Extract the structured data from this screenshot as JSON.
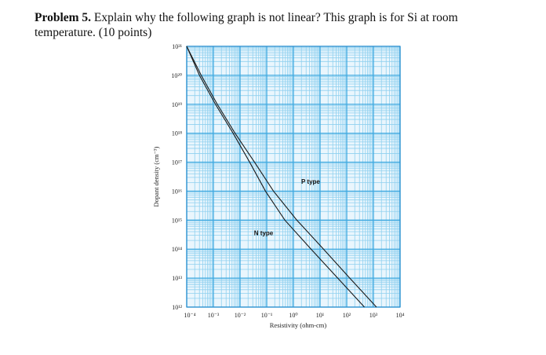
{
  "problem": {
    "heading": "Problem 5.",
    "text": " Explain why the following graph is not linear? This graph is for Si at room temperature. (10 points)"
  },
  "chart_data": {
    "type": "line",
    "xlabel": "Resistivity (ohm-cm)",
    "ylabel": "Dopant density (cm⁻³)",
    "xscale": "log",
    "yscale": "log",
    "xlim": [
      0.0001,
      10000
    ],
    "ylim": [
      1000000000000.0,
      1e+21
    ],
    "grid": true,
    "x_tick_labels": [
      "10⁻⁴",
      "10⁻³",
      "10⁻²",
      "10⁻¹",
      "10⁰",
      "10¹",
      "10²",
      "10³",
      "10⁴"
    ],
    "y_tick_labels": [
      "10¹²",
      "10¹³",
      "10¹⁴",
      "10¹⁵",
      "10¹⁶",
      "10¹⁷",
      "10¹⁸",
      "10¹⁹",
      "10²⁰",
      "10²¹"
    ],
    "series": [
      {
        "name": "N type",
        "points": [
          [
            0.0001,
            1e+21
          ],
          [
            0.0003,
            1e+20
          ],
          [
            0.0012,
            1e+19
          ],
          [
            0.0055,
            1e+18
          ],
          [
            0.023,
            1e+17
          ],
          [
            0.09,
            1e+16
          ],
          [
            0.48,
            1000000000000000.0
          ],
          [
            4.6,
            100000000000000.0
          ],
          [
            46,
            10000000000000.0
          ],
          [
            460,
            1000000000000.0
          ]
        ]
      },
      {
        "name": "P type",
        "points": [
          [
            0.0001,
            1e+21
          ],
          [
            0.00035,
            1e+20
          ],
          [
            0.0014,
            1e+19
          ],
          [
            0.0065,
            1e+18
          ],
          [
            0.035,
            1e+17
          ],
          [
            0.18,
            1e+16
          ],
          [
            1.35,
            1000000000000000.0
          ],
          [
            13.5,
            100000000000000.0
          ],
          [
            130,
            10000000000000.0
          ],
          [
            1300,
            1000000000000.0
          ]
        ]
      }
    ]
  }
}
